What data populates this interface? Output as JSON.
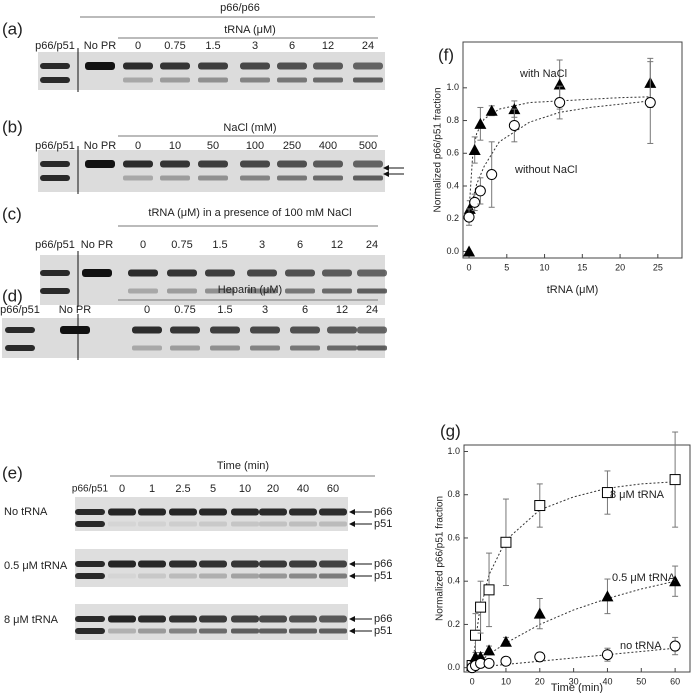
{
  "gels": [
    {
      "label": "(a)",
      "header": "p66/p66",
      "title": "tRNA (μM)",
      "lanes": [
        "p66/p51",
        "No PR",
        "0",
        "0.75",
        "1.5",
        "3",
        "6",
        "12",
        "24"
      ]
    },
    {
      "label": "(b)",
      "title": "NaCl (mM)",
      "lanes": [
        "p66/p51",
        "No PR",
        "0",
        "10",
        "50",
        "100",
        "250",
        "400",
        "500"
      ]
    },
    {
      "label": "(c)",
      "title": "tRNA  (μM) in a presence of 100 mM NaCl",
      "lanes": [
        "p66/p51",
        "No PR",
        "0",
        "0.75",
        "1.5",
        "3",
        "6",
        "12",
        "24"
      ]
    },
    {
      "label": "(d)",
      "title": "Heparin (μM)",
      "lanes": [
        "p66/p51",
        "No PR",
        "0",
        "0.75",
        "1.5",
        "3",
        "6",
        "12",
        "24"
      ]
    }
  ],
  "time_course": {
    "label": "(e)",
    "title": "Time (min)",
    "lanes": [
      "p66/p51",
      "0",
      "1",
      "2.5",
      "5",
      "10",
      "20",
      "40",
      "60"
    ],
    "rows": [
      "No tRNA",
      "0.5 μM tRNA",
      "8 μM tRNA"
    ],
    "bands": [
      "p66",
      "p51"
    ]
  },
  "chart_data": [
    {
      "type": "scatter",
      "panel_label": "(f)",
      "x_label": "tRNA (μM)",
      "y_label": "Normalized p66/p51 fraction",
      "xlim": [
        -0.8,
        28.2
      ],
      "xticks": [
        0,
        5,
        10,
        15,
        20,
        25
      ],
      "ylim": [
        -0.04,
        1.28
      ],
      "yticks": [
        {
          "value": 0,
          "label": "0.0"
        },
        {
          "value": 0.2,
          "label": "0.2"
        },
        {
          "value": 0.4,
          "label": "0.4"
        },
        {
          "value": 0.6,
          "label": "0.6"
        },
        {
          "value": 0.8,
          "label": "0.8"
        },
        {
          "value": 1,
          "label": "1.0"
        }
      ],
      "series": [
        {
          "name": "with NaCl",
          "color": "#000000",
          "marker": "triangle",
          "x": [
            0,
            0.1,
            0.75,
            1.5,
            3,
            6,
            12,
            24
          ],
          "values": [
            0,
            0.26,
            0.62,
            0.78,
            0.86,
            0.87,
            1.02,
            1.03
          ],
          "errors": [
            0,
            0.05,
            0.08,
            0.1,
            0.03,
            0.05,
            0.15,
            0.15
          ]
        },
        {
          "name": "without NaCl",
          "color": "#000000",
          "marker": "circle",
          "x": [
            0,
            0.75,
            1.5,
            3,
            6,
            12,
            24
          ],
          "values": [
            0.21,
            0.3,
            0.37,
            0.47,
            0.77,
            0.91,
            0.91
          ],
          "errors": [
            0.05,
            0.05,
            0.08,
            0.2,
            0.1,
            0.1,
            0.25
          ]
        }
      ],
      "fits": [
        {
          "x": [
            0,
            0.5,
            1,
            2,
            4,
            8,
            12,
            16,
            20,
            24
          ],
          "values": [
            0.25,
            0.6,
            0.72,
            0.81,
            0.87,
            0.91,
            0.92,
            0.93,
            0.94,
            0.945
          ]
        },
        {
          "x": [
            0,
            0.5,
            1,
            2,
            4,
            8,
            12,
            16,
            20,
            24
          ],
          "values": [
            0.21,
            0.32,
            0.41,
            0.52,
            0.67,
            0.79,
            0.85,
            0.88,
            0.9,
            0.92
          ]
        }
      ]
    },
    {
      "type": "scatter",
      "panel_label": "(g)",
      "x_label": "Time (min)",
      "y_label": "Normalized p66/p51 fraction",
      "xlim": [
        -2.4,
        64.4
      ],
      "xticks": [
        0,
        10,
        20,
        30,
        40,
        50,
        60
      ],
      "ylim": [
        -0.02,
        1.03
      ],
      "yticks": [
        {
          "value": 0,
          "label": "0.0"
        },
        {
          "value": 0.2,
          "label": "0.2"
        },
        {
          "value": 0.4,
          "label": "0.4"
        },
        {
          "value": 0.6,
          "label": "0.6"
        },
        {
          "value": 0.8,
          "label": "0.8"
        },
        {
          "value": 1,
          "label": "1.0"
        }
      ],
      "series": [
        {
          "name": "8 μM  tRNA",
          "color": "#000000",
          "marker": "square",
          "x": [
            0,
            1,
            2.5,
            5,
            10,
            20,
            40,
            60
          ],
          "values": [
            0.01,
            0.15,
            0.28,
            0.36,
            0.58,
            0.75,
            0.81,
            0.87
          ],
          "errors": [
            0.02,
            0.1,
            0.12,
            0.17,
            0.2,
            0.1,
            0.1,
            0.22
          ]
        },
        {
          "name": "0.5 μM  tRNA",
          "color": "#000000",
          "marker": "triangle",
          "x": [
            0,
            1,
            2.5,
            5,
            10,
            20,
            40,
            60
          ],
          "values": [
            0.01,
            0.05,
            0.05,
            0.08,
            0.12,
            0.25,
            0.33,
            0.4
          ],
          "errors": [
            0.01,
            0.02,
            0.02,
            0.02,
            0.02,
            0.07,
            0.08,
            0.07
          ]
        },
        {
          "name": "no tRNA",
          "color": "#000000",
          "marker": "circle",
          "x": [
            0,
            1,
            2.5,
            5,
            10,
            20,
            40,
            60
          ],
          "values": [
            0,
            0.01,
            0.02,
            0.02,
            0.03,
            0.05,
            0.06,
            0.1
          ],
          "errors": [
            0.01,
            0.01,
            0.01,
            0.01,
            0.01,
            0.02,
            0.03,
            0.04
          ]
        }
      ],
      "fits": [
        {
          "x": [
            0,
            2,
            5,
            10,
            20,
            30,
            40,
            50,
            60
          ],
          "values": [
            0,
            0.24,
            0.43,
            0.59,
            0.73,
            0.79,
            0.83,
            0.85,
            0.86
          ]
        },
        {
          "x": [
            0,
            2,
            5,
            10,
            20,
            30,
            40,
            50,
            60
          ],
          "values": [
            0,
            0.026,
            0.062,
            0.114,
            0.2,
            0.267,
            0.32,
            0.364,
            0.4
          ]
        },
        {
          "x": [
            0,
            2,
            5,
            10,
            20,
            30,
            40,
            50,
            60
          ],
          "values": [
            0,
            0.003,
            0.0075,
            0.015,
            0.03,
            0.045,
            0.06,
            0.075,
            0.09
          ]
        }
      ]
    }
  ]
}
